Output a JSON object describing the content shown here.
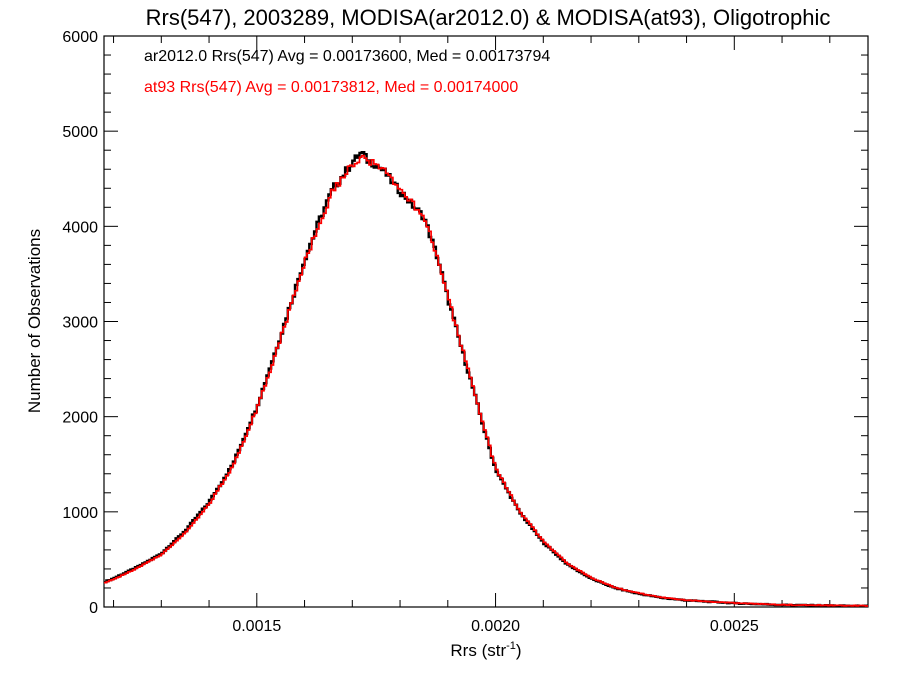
{
  "chart_data": {
    "type": "line",
    "title": "Rrs(547), 2003289, MODISA(ar2012.0) & MODISA(at93), Oligotrophic",
    "xlabel_main": "Rrs (str",
    "xlabel_sup": "-1",
    "xlabel_close": ")",
    "ylabel": "Number of Observations",
    "xlim": [
      0.00118,
      0.00278
    ],
    "ylim": [
      0,
      6000
    ],
    "x_ticks": [
      0.0015,
      0.002,
      0.0025
    ],
    "x_tick_labels": [
      "0.0015",
      "0.0020",
      "0.0025"
    ],
    "y_ticks": [
      0,
      1000,
      2000,
      3000,
      4000,
      5000,
      6000
    ],
    "y_tick_labels": [
      "0",
      "1000",
      "2000",
      "3000",
      "4000",
      "5000",
      "6000"
    ],
    "legend_placement": "top-left",
    "series": [
      {
        "name": "ar2012.0 Rrs(547) Avg = 0.00173600, Med = 0.00173794",
        "color": "#000000",
        "x": [
          0.00118,
          0.0012,
          0.00125,
          0.0013,
          0.00135,
          0.0014,
          0.00145,
          0.0015,
          0.00155,
          0.0016,
          0.00163,
          0.00166,
          0.00169,
          0.0017,
          0.00171,
          0.00172,
          0.00173,
          0.00175,
          0.00177,
          0.00179,
          0.00181,
          0.00183,
          0.00185,
          0.00188,
          0.0019,
          0.00193,
          0.00195,
          0.00198,
          0.002,
          0.00205,
          0.0021,
          0.00215,
          0.0022,
          0.00225,
          0.0023,
          0.00235,
          0.0024,
          0.0025,
          0.0026,
          0.0027,
          0.00278
        ],
        "y": [
          260,
          300,
          420,
          560,
          800,
          1100,
          1500,
          2100,
          2850,
          3650,
          4050,
          4400,
          4600,
          4680,
          4720,
          4780,
          4700,
          4650,
          4560,
          4420,
          4320,
          4200,
          4100,
          3650,
          3250,
          2700,
          2350,
          1800,
          1450,
          1000,
          680,
          450,
          300,
          200,
          140,
          95,
          70,
          40,
          22,
          15,
          10
        ]
      },
      {
        "name": "at93 Rrs(547) Avg = 0.00173812, Med = 0.00174000",
        "color": "#ff0000",
        "x": [
          0.00118,
          0.0012,
          0.00125,
          0.0013,
          0.00135,
          0.0014,
          0.00145,
          0.0015,
          0.00155,
          0.0016,
          0.00163,
          0.00166,
          0.00169,
          0.0017,
          0.00171,
          0.00172,
          0.00173,
          0.00175,
          0.00177,
          0.00179,
          0.00181,
          0.00183,
          0.00185,
          0.00188,
          0.0019,
          0.00193,
          0.00195,
          0.00198,
          0.002,
          0.00205,
          0.0021,
          0.00215,
          0.0022,
          0.00225,
          0.0023,
          0.00235,
          0.0024,
          0.0025,
          0.0026,
          0.0027,
          0.00278
        ],
        "y": [
          250,
          290,
          410,
          550,
          780,
          1080,
          1480,
          2080,
          2820,
          3620,
          4020,
          4380,
          4580,
          4660,
          4700,
          4720,
          4690,
          4640,
          4560,
          4430,
          4330,
          4210,
          4120,
          3660,
          3260,
          2720,
          2360,
          1820,
          1460,
          1010,
          690,
          460,
          310,
          205,
          145,
          100,
          72,
          42,
          24,
          16,
          11
        ]
      }
    ]
  }
}
